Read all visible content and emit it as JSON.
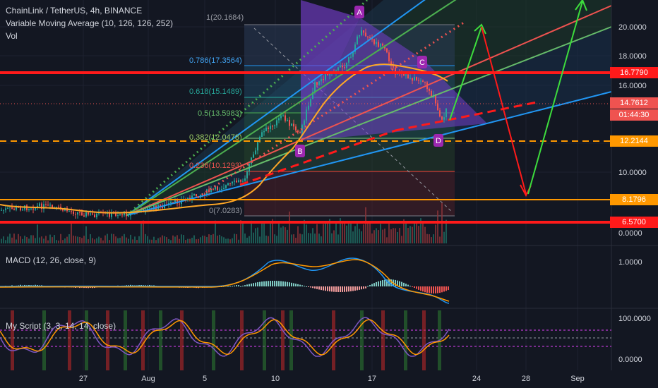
{
  "header": {
    "symbol": "ChainLink / TetherUS, 4h, BINANCE",
    "indicator": "Variable Moving Average (10, 126, 126, 252)",
    "vol": "Vol"
  },
  "macd": {
    "label": "MACD (12, 26, close, 9)",
    "ticks": [
      "1.0000"
    ]
  },
  "osc": {
    "label": "My Script (3, 3, 14, 14, close)",
    "ticks": [
      "100.0000",
      "0.0000"
    ]
  },
  "price_axis": {
    "ticks": [
      "20.0000",
      "18.0000",
      "16.0000",
      "12.0000",
      "10.0000",
      "0.0000"
    ]
  },
  "tags": {
    "resistance": "16.7790",
    "last_price": "14.7612",
    "countdown": "01:44:30",
    "support1": "12.2144",
    "support2": "8.1796",
    "support3": "6.5700"
  },
  "fib": [
    "1(20.1684)",
    "0.786(17.3564)",
    "0.618(15.1489)",
    "0.5(13.5983)",
    "0.382(12.0478)",
    "0.236(10.1293)",
    "0(7.0283)"
  ],
  "pattern": {
    "A": "A",
    "B": "B",
    "C": "C",
    "D1": "D",
    "D2": "D"
  },
  "x_axis": [
    "27",
    "Aug",
    "5",
    "10",
    "17",
    "24",
    "28",
    "Sep"
  ],
  "colors": {
    "bg": "#131722",
    "red": "#ff1a1a",
    "orange": "#ff9800",
    "green": "#4caf50",
    "blue": "#2196f3",
    "purple": "#9c27b0"
  }
}
